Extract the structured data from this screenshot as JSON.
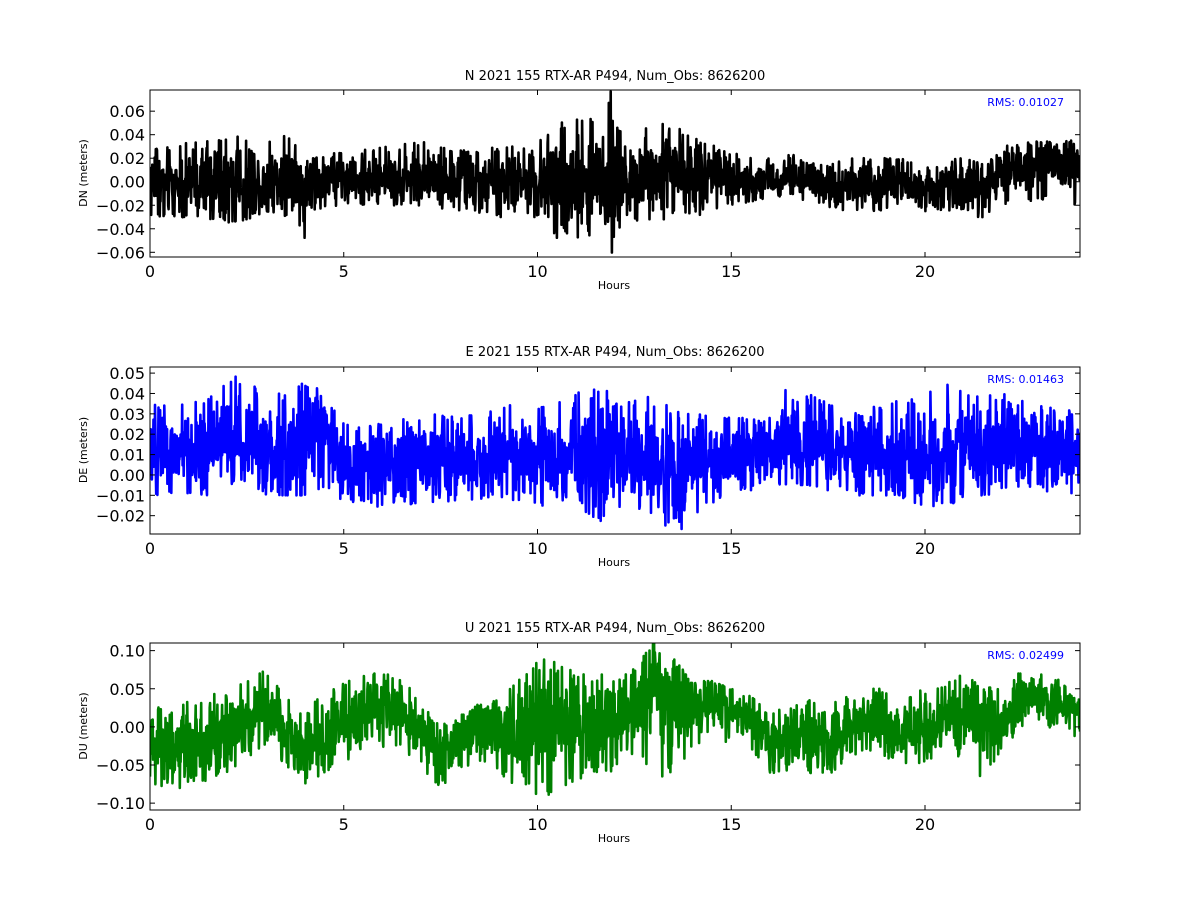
{
  "chart_data": [
    {
      "type": "line",
      "title": "N 2021 155 RTX-AR  P494, Num_Obs: 8626200",
      "xlabel": "Hours",
      "ylabel": "DN (meters)",
      "xlim": [
        0,
        24
      ],
      "ylim": [
        -0.064,
        0.078
      ],
      "xticks": [
        0,
        5,
        10,
        15,
        20
      ],
      "yticks": [
        -0.06,
        -0.04,
        -0.02,
        0.0,
        0.02,
        0.04,
        0.06
      ],
      "ytick_labels": [
        "−0.06",
        "−0.04",
        "−0.02",
        "0.00",
        "0.02",
        "0.04",
        "0.06"
      ],
      "rms_label": "RMS:  0.01027",
      "color": "#000000",
      "series": [
        {
          "x": [
            0,
            1,
            2,
            2.3,
            3,
            3.6,
            4,
            4.1,
            5,
            6,
            7,
            8,
            9,
            10,
            10.5,
            11,
            11.5,
            11.8,
            11.9,
            12,
            12.5,
            13,
            13.5,
            14,
            15,
            16,
            16.5,
            17,
            18,
            19,
            20,
            21,
            21.5,
            22,
            23,
            24
          ],
          "y_center": [
            0.0,
            0.0,
            -0.002,
            0.0,
            0.0,
            0.003,
            -0.01,
            0.0,
            0.003,
            0.003,
            0.005,
            0.002,
            -0.002,
            0.0,
            -0.002,
            0.0,
            0.0,
            0.0,
            0.0,
            0.0,
            0.005,
            0.01,
            0.012,
            0.008,
            0.003,
            0.001,
            0.005,
            -0.002,
            -0.002,
            0.0,
            -0.005,
            0.0,
            -0.005,
            0.01,
            0.015,
            0.01
          ],
          "y_max": [
            0.03,
            0.033,
            0.04,
            0.043,
            0.035,
            0.04,
            0.02,
            0.022,
            0.025,
            0.03,
            0.035,
            0.03,
            0.03,
            0.04,
            0.05,
            0.055,
            0.06,
            0.065,
            0.078,
            0.05,
            0.04,
            0.05,
            0.048,
            0.04,
            0.025,
            0.02,
            0.025,
            0.015,
            0.02,
            0.02,
            0.018,
            0.02,
            0.015,
            0.03,
            0.035,
            0.035
          ],
          "y_min": [
            -0.03,
            -0.032,
            -0.035,
            -0.035,
            -0.025,
            -0.03,
            -0.048,
            -0.025,
            -0.02,
            -0.02,
            -0.02,
            -0.025,
            -0.03,
            -0.03,
            -0.05,
            -0.048,
            -0.053,
            -0.05,
            -0.064,
            -0.045,
            -0.035,
            -0.035,
            -0.03,
            -0.03,
            -0.02,
            -0.015,
            -0.01,
            -0.02,
            -0.025,
            -0.025,
            -0.025,
            -0.025,
            -0.032,
            -0.02,
            -0.015,
            -0.02
          ]
        }
      ]
    },
    {
      "type": "line",
      "title": "E 2021 155 RTX-AR  P494, Num_Obs: 8626200",
      "xlabel": "Hours",
      "ylabel": "DE (meters)",
      "xlim": [
        0,
        24
      ],
      "ylim": [
        -0.029,
        0.053
      ],
      "xticks": [
        0,
        5,
        10,
        15,
        20
      ],
      "yticks": [
        -0.02,
        -0.01,
        0.0,
        0.01,
        0.02,
        0.03,
        0.04,
        0.05
      ],
      "ytick_labels": [
        "−0.02",
        "−0.01",
        "0.00",
        "0.01",
        "0.02",
        "0.03",
        "0.04",
        "0.05"
      ],
      "rms_label": "RMS:  0.01463",
      "color": "#0000ff",
      "series": [
        {
          "x": [
            0,
            1,
            1.5,
            2,
            2.2,
            3,
            3.5,
            4,
            4.05,
            4.2,
            4.5,
            5,
            6,
            7,
            8,
            9,
            10,
            11,
            11.8,
            12,
            13,
            13.5,
            13.7,
            14,
            15,
            16,
            16.5,
            17,
            18,
            19,
            20,
            20.7,
            21,
            22,
            23,
            23.5,
            24
          ],
          "y_center": [
            0.012,
            0.012,
            0.013,
            0.018,
            0.02,
            0.015,
            0.012,
            0.01,
            0.03,
            0.025,
            0.018,
            0.008,
            0.005,
            0.007,
            0.007,
            0.01,
            0.008,
            0.008,
            0.005,
            0.007,
            0.005,
            0.003,
            0.002,
            0.004,
            0.01,
            0.012,
            0.016,
            0.018,
            0.012,
            0.01,
            0.008,
            0.01,
            0.015,
            0.015,
            0.013,
            0.01,
            0.012
          ],
          "y_max": [
            0.035,
            0.035,
            0.038,
            0.045,
            0.053,
            0.04,
            0.04,
            0.048,
            0.05,
            0.045,
            0.04,
            0.025,
            0.025,
            0.03,
            0.03,
            0.035,
            0.035,
            0.04,
            0.047,
            0.035,
            0.04,
            0.035,
            0.03,
            0.03,
            0.028,
            0.028,
            0.045,
            0.04,
            0.03,
            0.035,
            0.04,
            0.047,
            0.042,
            0.04,
            0.035,
            0.032,
            0.033
          ],
          "y_min": [
            -0.01,
            -0.01,
            -0.01,
            -0.005,
            -0.005,
            -0.01,
            -0.01,
            -0.01,
            0.0,
            -0.005,
            -0.01,
            -0.013,
            -0.016,
            -0.015,
            -0.012,
            -0.012,
            -0.015,
            -0.015,
            -0.025,
            -0.015,
            -0.02,
            -0.028,
            -0.029,
            -0.02,
            -0.01,
            -0.005,
            -0.005,
            -0.005,
            -0.01,
            -0.01,
            -0.015,
            -0.018,
            -0.01,
            -0.01,
            -0.005,
            -0.015,
            -0.005
          ]
        }
      ]
    },
    {
      "type": "line",
      "title": "U 2021 155 RTX-AR  P494, Num_Obs: 8626200",
      "xlabel": "Hours",
      "ylabel": "DU (meters)",
      "xlim": [
        0,
        24
      ],
      "ylim": [
        -0.109,
        0.11
      ],
      "xticks": [
        0,
        5,
        10,
        15,
        20
      ],
      "yticks": [
        -0.1,
        -0.05,
        0.0,
        0.05,
        0.1
      ],
      "ytick_labels": [
        "−0.10",
        "−0.05",
        "0.00",
        "0.05",
        "0.10"
      ],
      "rms_label": "RMS:  0.02499",
      "color": "#008000",
      "series": [
        {
          "x": [
            0,
            0.5,
            1,
            1.5,
            2,
            2.5,
            3,
            3.5,
            4,
            4.5,
            5,
            5.5,
            6,
            6.5,
            7,
            7.5,
            8,
            8.5,
            9,
            9.5,
            10,
            10.2,
            10.5,
            11,
            11.5,
            12,
            12.5,
            13,
            13.5,
            14,
            14.5,
            15,
            15.5,
            16,
            16.5,
            17,
            17.5,
            18,
            18.5,
            19,
            19.5,
            20,
            20.5,
            21,
            21.5,
            22,
            22.5,
            23,
            23.5,
            24
          ],
          "y_center": [
            -0.02,
            -0.03,
            -0.02,
            -0.02,
            -0.01,
            0.01,
            0.02,
            0.0,
            -0.03,
            -0.01,
            0.01,
            0.02,
            0.03,
            0.02,
            -0.01,
            -0.04,
            -0.01,
            0.0,
            -0.01,
            0.0,
            0.0,
            0.005,
            0.01,
            0.0,
            0.01,
            0.0,
            0.02,
            0.04,
            0.03,
            0.02,
            0.03,
            0.02,
            0.01,
            -0.02,
            -0.02,
            -0.01,
            -0.02,
            0.0,
            0.01,
            0.0,
            -0.01,
            0.0,
            0.01,
            0.02,
            0.005,
            0.01,
            0.04,
            0.04,
            0.03,
            0.02
          ],
          "y_max": [
            0.03,
            0.02,
            0.035,
            0.04,
            0.05,
            0.06,
            0.075,
            0.04,
            0.02,
            0.045,
            0.06,
            0.07,
            0.07,
            0.065,
            0.03,
            0.0,
            0.02,
            0.03,
            0.035,
            0.06,
            0.09,
            0.1,
            0.085,
            0.07,
            0.075,
            0.06,
            0.08,
            0.11,
            0.09,
            0.06,
            0.06,
            0.05,
            0.04,
            0.02,
            0.025,
            0.035,
            0.03,
            0.04,
            0.05,
            0.05,
            0.04,
            0.05,
            0.055,
            0.07,
            0.05,
            0.055,
            0.08,
            0.075,
            0.06,
            0.05
          ],
          "y_min": [
            -0.07,
            -0.09,
            -0.075,
            -0.07,
            -0.06,
            -0.04,
            -0.03,
            -0.05,
            -0.075,
            -0.06,
            -0.05,
            -0.04,
            -0.03,
            -0.03,
            -0.06,
            -0.08,
            -0.055,
            -0.045,
            -0.06,
            -0.09,
            -0.1,
            -0.109,
            -0.085,
            -0.07,
            -0.06,
            -0.06,
            -0.05,
            -0.07,
            -0.06,
            -0.03,
            -0.02,
            -0.02,
            -0.03,
            -0.06,
            -0.07,
            -0.06,
            -0.065,
            -0.04,
            -0.03,
            -0.04,
            -0.05,
            -0.05,
            -0.045,
            -0.04,
            -0.07,
            -0.03,
            0.0,
            0.0,
            -0.005,
            -0.03
          ]
        }
      ]
    }
  ]
}
